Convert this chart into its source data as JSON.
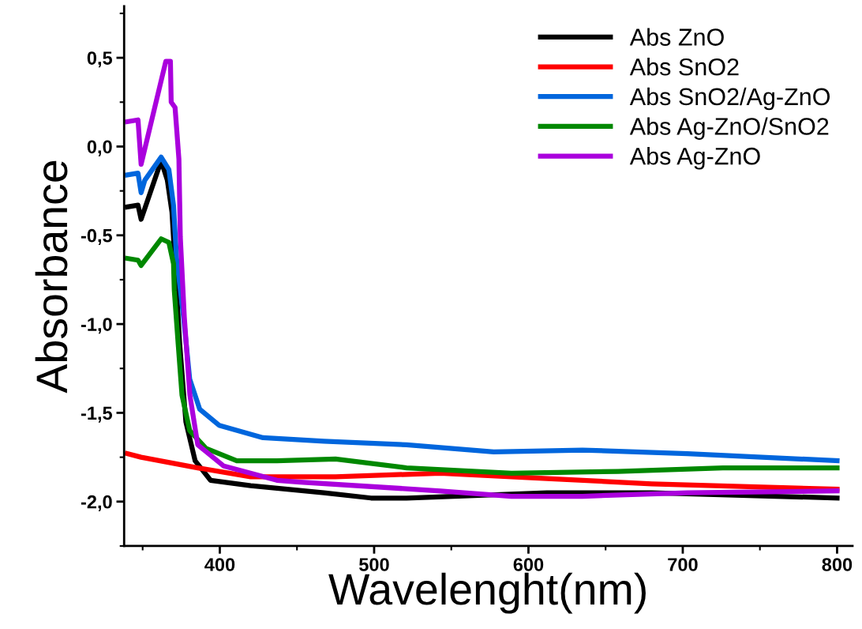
{
  "chart_data": {
    "type": "line",
    "xlabel": "Wavelenght(nm)",
    "ylabel": "Absorbance",
    "xlim": [
      338,
      810
    ],
    "ylim": [
      -2.25,
      0.79
    ],
    "xticks": [
      400,
      500,
      600,
      700,
      800
    ],
    "yticks": [
      {
        "value": -2.0,
        "label": "-2,0"
      },
      {
        "value": -1.5,
        "label": "-1,5"
      },
      {
        "value": -1.0,
        "label": "-1,0"
      },
      {
        "value": -0.5,
        "label": "-0,5"
      },
      {
        "value": 0.0,
        "label": "0,0"
      },
      {
        "value": 0.5,
        "label": "0,5"
      }
    ],
    "legend": "top right",
    "grid": false,
    "marker": "none",
    "line_style": "solid",
    "series": [
      {
        "name": "Abs ZnO",
        "color": "#000000",
        "x": [
          340,
          347,
          349,
          362,
          366,
          369,
          371,
          374,
          378,
          384,
          394,
          420,
          467.5,
          498,
          521,
          612,
          680,
          800
        ],
        "values": [
          -0.34,
          -0.33,
          -0.41,
          -0.08,
          -0.19,
          -0.37,
          -0.66,
          -1.11,
          -1.55,
          -1.77,
          -1.88,
          -1.91,
          -1.95,
          -1.98,
          -1.98,
          -1.95,
          -1.95,
          -1.98
        ]
      },
      {
        "name": "Abs SnO2",
        "color": "#ff0000",
        "x": [
          340,
          349,
          385.7,
          420,
          475,
          543,
          612,
          680,
          800
        ],
        "values": [
          -1.73,
          -1.75,
          -1.81,
          -1.86,
          -1.86,
          -1.84,
          -1.87,
          -1.9,
          -1.93
        ]
      },
      {
        "name": "Abs SnO2/Ag-ZnO",
        "color": "#0066dd",
        "x": [
          340,
          347,
          349,
          351.4,
          362,
          367,
          370,
          372,
          376.5,
          380.5,
          387,
          399.5,
          428,
          467.5,
          521,
          577.5,
          635,
          703,
          800
        ],
        "values": [
          -0.16,
          -0.15,
          -0.26,
          -0.19,
          -0.06,
          -0.13,
          -0.33,
          -0.63,
          -0.96,
          -1.31,
          -1.48,
          -1.57,
          -1.64,
          -1.66,
          -1.68,
          -1.72,
          -1.71,
          -1.73,
          -1.77
        ]
      },
      {
        "name": "Abs Ag-ZnO/SnO2",
        "color": "#008800",
        "x": [
          340,
          347,
          349,
          362,
          367,
          370,
          370.5,
          373,
          375.5,
          380.5,
          391,
          411,
          437,
          475,
          521,
          589,
          658,
          726,
          800
        ],
        "values": [
          -0.63,
          -0.64,
          -0.67,
          -0.52,
          -0.54,
          -0.66,
          -0.81,
          -1.11,
          -1.4,
          -1.6,
          -1.7,
          -1.77,
          -1.77,
          -1.76,
          -1.81,
          -1.84,
          -1.83,
          -1.81,
          -1.81
        ]
      },
      {
        "name": "Abs Ag-ZnO",
        "color": "#aa00dd",
        "x": [
          340,
          347,
          349,
          365,
          368,
          368.5,
          371,
          373.5,
          374.4,
          377,
          380.6,
          385.7,
          402.6,
          437,
          452,
          543,
          589,
          635,
          703,
          800
        ],
        "values": [
          0.14,
          0.15,
          -0.1,
          0.48,
          0.48,
          0.25,
          0.22,
          -0.07,
          -0.51,
          -0.96,
          -1.4,
          -1.68,
          -1.8,
          -1.88,
          -1.89,
          -1.94,
          -1.97,
          -1.97,
          -1.95,
          -1.94
        ]
      }
    ]
  }
}
